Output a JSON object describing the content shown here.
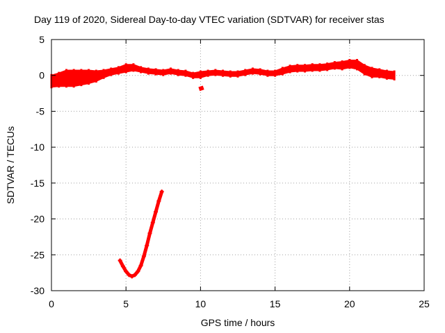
{
  "chart_data": {
    "type": "scatter",
    "title": "Day 119 of 2020, Sidereal Day-to-day VTEC variation (SDTVAR) for receiver stas",
    "xlabel": "GPS time / hours",
    "ylabel": "SDTVAR / TECUs",
    "xlim": [
      0,
      25
    ],
    "ylim": [
      -30,
      5
    ],
    "x_ticks": [
      0,
      5,
      10,
      15,
      20,
      25
    ],
    "y_ticks": [
      -30,
      -25,
      -20,
      -15,
      -10,
      -5,
      0,
      5
    ],
    "x_tick_labels": [
      "0",
      "5",
      "10",
      "15",
      "20",
      "25"
    ],
    "y_tick_labels": [
      "-30",
      "-25",
      "-20",
      "-15",
      "-10",
      "-5",
      "0",
      "5"
    ],
    "grid": true,
    "series_color": "#ff0000",
    "band": {
      "name": "main band",
      "x": [
        0.0,
        0.5,
        1.0,
        1.5,
        2.0,
        2.5,
        3.0,
        3.5,
        4.0,
        4.5,
        5.0,
        5.5,
        6.0,
        6.5,
        7.0,
        7.5,
        8.0,
        8.5,
        9.0,
        9.5,
        10.0,
        10.5,
        11.0,
        11.5,
        12.0,
        12.5,
        13.0,
        13.5,
        14.0,
        14.5,
        15.0,
        15.5,
        16.0,
        16.5,
        17.0,
        17.5,
        18.0,
        18.5,
        19.0,
        19.5,
        20.0,
        20.5,
        21.0,
        21.5,
        22.0,
        22.5,
        23.0
      ],
      "center": [
        -0.8,
        -0.6,
        -0.4,
        -0.4,
        -0.3,
        -0.2,
        -0.1,
        0.2,
        0.5,
        0.7,
        1.0,
        1.1,
        0.8,
        0.6,
        0.5,
        0.4,
        0.6,
        0.4,
        0.3,
        0.0,
        0.1,
        0.3,
        0.4,
        0.3,
        0.2,
        0.2,
        0.4,
        0.6,
        0.5,
        0.3,
        0.3,
        0.6,
        0.9,
        1.0,
        1.0,
        1.1,
        1.1,
        1.2,
        1.4,
        1.4,
        1.6,
        1.5,
        0.8,
        0.4,
        0.3,
        0.1,
        0.0
      ],
      "half_width": [
        0.8,
        0.9,
        1.1,
        1.1,
        1.0,
        0.9,
        0.7,
        0.5,
        0.4,
        0.4,
        0.5,
        0.4,
        0.3,
        0.3,
        0.3,
        0.3,
        0.3,
        0.3,
        0.3,
        0.3,
        0.4,
        0.3,
        0.3,
        0.3,
        0.3,
        0.3,
        0.3,
        0.3,
        0.3,
        0.3,
        0.3,
        0.4,
        0.4,
        0.4,
        0.4,
        0.4,
        0.4,
        0.4,
        0.4,
        0.5,
        0.5,
        0.6,
        0.6,
        0.6,
        0.5,
        0.5,
        0.5
      ]
    },
    "fragment": {
      "name": "short segment near 10h",
      "x": [
        9.9,
        10.2
      ],
      "y": [
        -1.9,
        -1.7
      ]
    },
    "dip": {
      "name": "dip curve",
      "x": [
        4.6,
        4.8,
        5.0,
        5.2,
        5.4,
        5.6,
        5.8,
        6.0,
        6.2,
        6.4,
        6.6,
        6.8,
        7.0,
        7.2,
        7.4
      ],
      "y": [
        -25.8,
        -26.6,
        -27.3,
        -27.8,
        -28.0,
        -27.8,
        -27.3,
        -26.5,
        -25.2,
        -23.7,
        -22.0,
        -20.5,
        -19.0,
        -17.5,
        -16.2
      ]
    }
  }
}
